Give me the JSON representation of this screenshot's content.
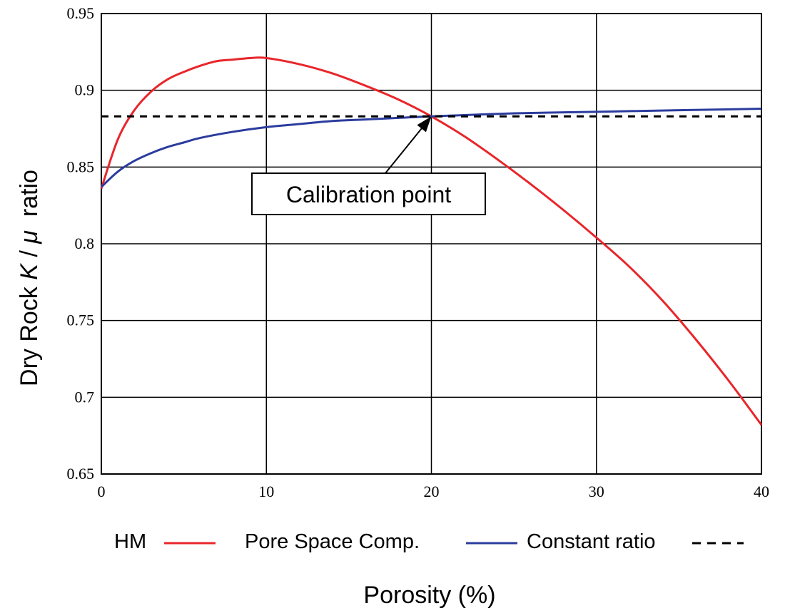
{
  "chart_data": {
    "type": "line",
    "title": "",
    "xlabel": "Porosity (%)",
    "ylabel": {
      "prefix": "Dry Rock ",
      "k_symbol": "K",
      "separator": " / ",
      "mu_symbol": "μ",
      "suffix": "  ratio"
    },
    "xlim": [
      0,
      40
    ],
    "ylim": [
      0.65,
      0.95
    ],
    "x_ticks": [
      0,
      10,
      20,
      30,
      40
    ],
    "y_ticks": [
      0.65,
      0.7,
      0.75,
      0.8,
      0.85,
      0.9,
      0.95
    ],
    "x_tick_labels": [
      "0",
      "10",
      "20",
      "30",
      "40"
    ],
    "y_tick_labels": [
      "0.65",
      "0.7",
      "0.75",
      "0.8",
      "0.85",
      "0.9",
      "0.95"
    ],
    "grid": true,
    "legend_position": "bottom",
    "series": [
      {
        "name": "HM",
        "color": "#e8262b",
        "style": "solid",
        "x": [
          0,
          1,
          2,
          3,
          4,
          5,
          6,
          7,
          8,
          9,
          10,
          12,
          14,
          16,
          18,
          20,
          22,
          24,
          26,
          28,
          30,
          32,
          34,
          36,
          38,
          40
        ],
        "y": [
          0.836,
          0.868,
          0.887,
          0.899,
          0.907,
          0.912,
          0.916,
          0.919,
          0.92,
          0.921,
          0.921,
          0.917,
          0.911,
          0.903,
          0.894,
          0.883,
          0.87,
          0.855,
          0.839,
          0.822,
          0.804,
          0.785,
          0.763,
          0.738,
          0.711,
          0.682
        ]
      },
      {
        "name": "Pore Space Comp.",
        "color": "#2b3c9e",
        "style": "solid",
        "x": [
          0,
          1,
          2,
          3,
          4,
          5,
          6,
          8,
          10,
          12,
          14,
          16,
          18,
          20,
          25,
          30,
          35,
          40
        ],
        "y": [
          0.837,
          0.847,
          0.854,
          0.859,
          0.863,
          0.866,
          0.869,
          0.873,
          0.876,
          0.878,
          0.88,
          0.881,
          0.882,
          0.883,
          0.885,
          0.886,
          0.887,
          0.888
        ]
      },
      {
        "name": "Constant ratio",
        "color": "#000000",
        "style": "dashed",
        "x": [
          0,
          40
        ],
        "y": [
          0.883,
          0.883
        ]
      }
    ],
    "annotations": [
      {
        "text": "Calibration point",
        "point": {
          "x": 20,
          "y": 0.883
        },
        "arrow": true
      }
    ]
  }
}
